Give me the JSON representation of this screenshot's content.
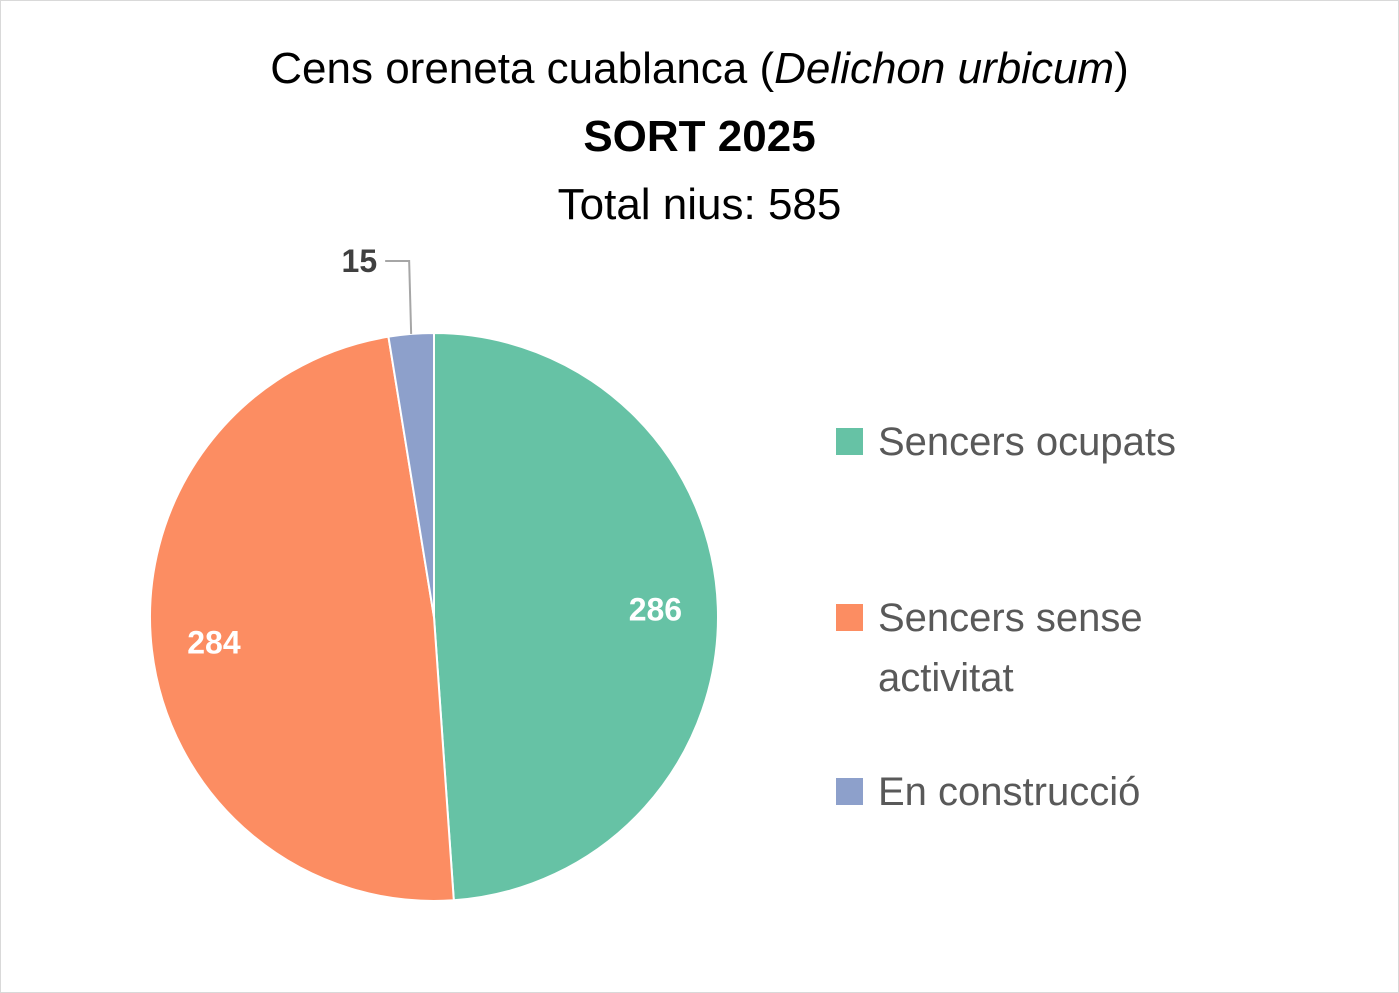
{
  "chart_data": {
    "type": "pie",
    "title": {
      "line1_prefix": "Cens oreneta cuablanca (",
      "line1_italic": "Delichon urbicum",
      "line1_suffix": ")",
      "line2": "SORT 2025",
      "line3": "Total nius: 585"
    },
    "categories": [
      "Sencers ocupats",
      "Sencers sense activitat",
      "En construcció"
    ],
    "values": [
      286,
      284,
      15
    ],
    "data_labels": [
      "286",
      "284",
      "15"
    ],
    "colors": [
      "#66c2a5",
      "#fc8d62",
      "#8da0cb"
    ],
    "label_colors": [
      "#ffffff",
      "#ffffff",
      "#404040"
    ],
    "legend_position": "right",
    "start_angle_deg": 0,
    "direction": "clockwise"
  },
  "legend": {
    "items": [
      {
        "label": "Sencers ocupats",
        "color": "#66c2a5"
      },
      {
        "label": "Sencers sense activitat",
        "color": "#fc8d62"
      },
      {
        "label": "En construcció",
        "color": "#8da0cb"
      }
    ]
  }
}
